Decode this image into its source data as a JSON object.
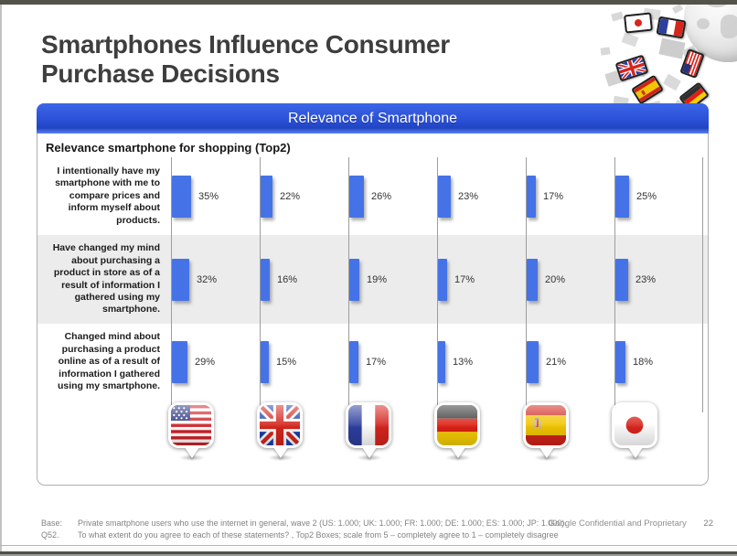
{
  "slide": {
    "title": {
      "line1": "Smartphones Influence Consumer",
      "line2": "Purchase Decisions"
    },
    "banner_title": "Relevance of Smartphone",
    "footer": {
      "base_label": "Base:",
      "base_text": "Private smartphone users who use the internet in general, wave 2 (US: 1.000; UK: 1.000; FR: 1.000; DE: 1.000; ES: 1.000; JP: 1.000).",
      "q_label": "Q52.",
      "q_text": "To what extent do you agree to each of these statements? , Top2 Boxes; scale from 5 – completely agree to 1 – completely disagree",
      "confidential": "Google Confidential and Proprietary",
      "page_number": "22"
    }
  },
  "chart_data": {
    "type": "bar",
    "orientation": "horizontal",
    "title": "Relevance smartphone for shopping (Top2)",
    "unit": "%",
    "categories": [
      "US",
      "UK",
      "FR",
      "DE",
      "ES",
      "JP"
    ],
    "category_icons": [
      "us-flag-pin-icon",
      "uk-flag-pin-icon",
      "fr-flag-pin-icon",
      "de-flag-pin-icon",
      "es-flag-pin-icon",
      "jp-flag-pin-icon"
    ],
    "rows": [
      {
        "statement": "I intentionally have my smartphone with me to compare prices and inform myself about products.",
        "values": [
          35,
          22,
          26,
          23,
          17,
          25
        ]
      },
      {
        "statement": "Have changed my mind about purchasing a product in store as of a result of information I gathered using my smartphone.",
        "values": [
          32,
          16,
          19,
          17,
          20,
          23
        ]
      },
      {
        "statement": "Changed mind about purchasing a product online as of a result of information I gathered using my smartphone.",
        "values": [
          29,
          15,
          17,
          13,
          21,
          18
        ]
      }
    ],
    "axis_range": [
      0,
      100
    ],
    "grid": "column-separator-lines",
    "legend_position": "bottom-flag-pins",
    "colors": {
      "bar": "#4573e7",
      "banner": "#2b52d6",
      "alt_row_bg": "#ececec"
    }
  }
}
